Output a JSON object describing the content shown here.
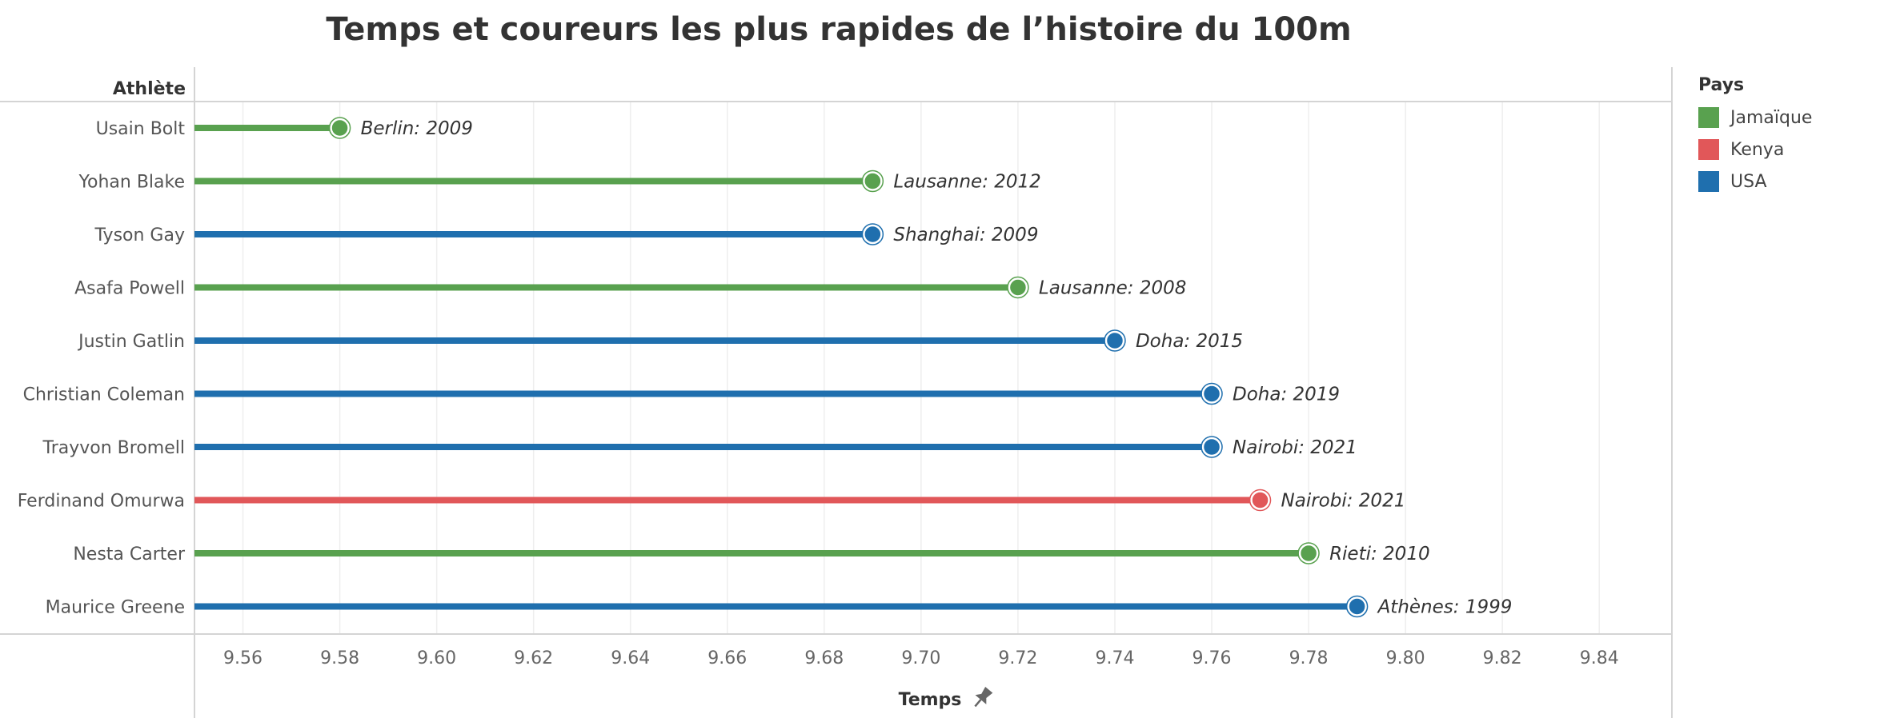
{
  "chart_data": {
    "type": "lollipop",
    "title": "Temps et coureurs les plus rapides de l’histoire du 100m",
    "ylabel": "Athlète",
    "xlabel": "Temps",
    "xlim": [
      9.55,
      9.855
    ],
    "xticks": [
      "9.56",
      "9.58",
      "9.60",
      "9.62",
      "9.64",
      "9.66",
      "9.68",
      "9.70",
      "9.72",
      "9.74",
      "9.76",
      "9.78",
      "9.80",
      "9.82",
      "9.84"
    ],
    "grid": true,
    "colors": {
      "Jamaïque": "#59a14f",
      "Kenya": "#e15759",
      "USA": "#1f6fae"
    },
    "rows": [
      {
        "athlete": "Usain Bolt",
        "time": 9.58,
        "country": "Jamaïque",
        "label": "Berlin: 2009"
      },
      {
        "athlete": "Yohan Blake",
        "time": 9.69,
        "country": "Jamaïque",
        "label": "Lausanne: 2012"
      },
      {
        "athlete": "Tyson Gay",
        "time": 9.69,
        "country": "USA",
        "label": "Shanghai: 2009"
      },
      {
        "athlete": "Asafa Powell",
        "time": 9.72,
        "country": "Jamaïque",
        "label": "Lausanne: 2008"
      },
      {
        "athlete": "Justin Gatlin",
        "time": 9.74,
        "country": "USA",
        "label": "Doha: 2015"
      },
      {
        "athlete": "Christian Coleman",
        "time": 9.76,
        "country": "USA",
        "label": "Doha: 2019"
      },
      {
        "athlete": "Trayvon Bromell",
        "time": 9.76,
        "country": "USA",
        "label": "Nairobi: 2021"
      },
      {
        "athlete": "Ferdinand Omurwa",
        "time": 9.77,
        "country": "Kenya",
        "label": "Nairobi: 2021"
      },
      {
        "athlete": "Nesta Carter",
        "time": 9.78,
        "country": "Jamaïque",
        "label": "Rieti: 2010"
      },
      {
        "athlete": "Maurice Greene",
        "time": 9.79,
        "country": "USA",
        "label": "Athènes: 1999"
      }
    ],
    "legend": {
      "title": "Pays",
      "position": "right",
      "items": [
        {
          "label": "Jamaïque",
          "color": "#59a14f"
        },
        {
          "label": "Kenya",
          "color": "#e15759"
        },
        {
          "label": "USA",
          "color": "#1f6fae"
        }
      ]
    }
  }
}
